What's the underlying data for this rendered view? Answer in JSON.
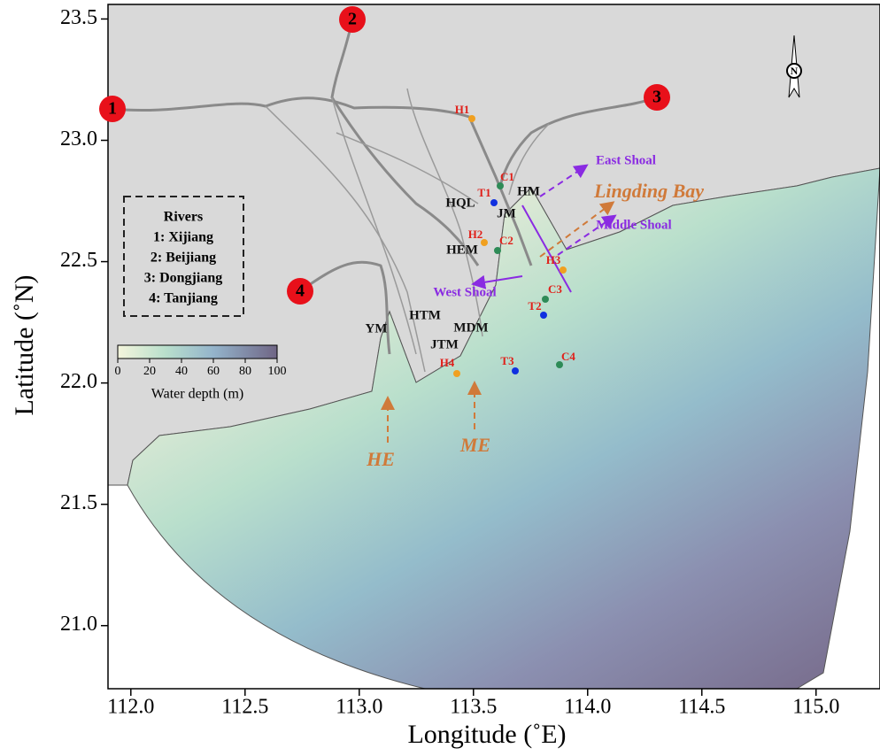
{
  "axes": {
    "xlabel": "Longitude (˚E)",
    "ylabel": "Latitude (˚N)",
    "xlim": [
      111.9,
      115.28
    ],
    "ylim": [
      20.74,
      23.56
    ],
    "xticks": [
      {
        "value": 112,
        "label": "112.0"
      },
      112.5,
      {
        "value": 113,
        "label": "113.0"
      },
      113.5,
      {
        "value": 114,
        "label": "114.0"
      },
      114.5,
      {
        "value": 115,
        "label": "115.0"
      }
    ],
    "yticks": [
      {
        "value": 21,
        "label": "21.0"
      },
      21.5,
      {
        "value": 22,
        "label": "22.0"
      },
      22.5,
      {
        "value": 23,
        "label": "23.0"
      },
      23.5
    ]
  },
  "river_markers": [
    "1",
    "2",
    "3",
    "4"
  ],
  "rivers_legend": {
    "title": "Rivers",
    "items": [
      "1: Xijiang",
      "2: Beijiang",
      "3: Dongjiang",
      "4: Tanjiang"
    ]
  },
  "colorbar": {
    "label": "Water depth (m)",
    "range": [
      0,
      100
    ],
    "ticks": [
      0,
      20,
      40,
      60,
      80,
      100
    ]
  },
  "stations": [
    "H1",
    "C1",
    "T1",
    "H2",
    "C2",
    "H3",
    "C3",
    "T2",
    "H4",
    "T3",
    "C4"
  ],
  "outlets": [
    "HQL",
    "HM",
    "JM",
    "HEM",
    "YM",
    "HTM",
    "MDM",
    "JTM"
  ],
  "regions": [
    "East Shoal",
    "Lingding Bay",
    "Middle Shoal",
    "West Shoal",
    "HE",
    "ME"
  ],
  "north": "N"
}
